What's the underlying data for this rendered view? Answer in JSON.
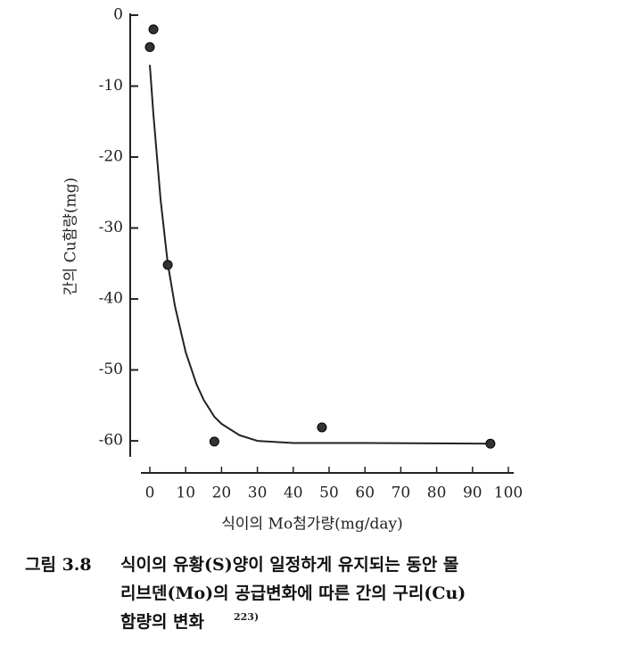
{
  "chart_data": {
    "type": "scatter",
    "y_label": "간의 Cu함량(mg)",
    "x_label": "식이의 Mo첨가량(mg/day)",
    "xlim": [
      0,
      100
    ],
    "xticks": [
      0,
      10,
      20,
      30,
      40,
      50,
      60,
      70,
      80,
      90,
      100
    ],
    "ylim": [
      -62,
      0
    ],
    "yticks": [
      0,
      -10,
      -20,
      -30,
      -40,
      -50,
      -60
    ],
    "color": "#333333",
    "points": {
      "x": [
        0,
        1,
        5,
        18,
        48,
        95
      ],
      "values": [
        -4.5,
        -2,
        -35.2,
        -60.1,
        -58.1,
        -60.4
      ]
    },
    "curve": {
      "x": [
        0,
        1,
        2,
        3,
        5,
        7,
        10,
        13,
        15,
        18,
        20,
        25,
        30,
        40,
        60,
        95
      ],
      "values": [
        -7,
        -14,
        -20,
        -26,
        -35,
        -41,
        -47.5,
        -52,
        -54.2,
        -56.6,
        -57.6,
        -59.2,
        -60,
        -60.3,
        -60.3,
        -60.4
      ]
    },
    "figure_number": "그림 3.8",
    "caption_lines": [
      "식이의 유황(S)양이 일정하게 유지되는 동안 몰",
      "리브덴(Mo)의 공급변화에 따른 간의 구리(Cu)",
      "함량의 변화"
    ],
    "reference": "223)"
  }
}
